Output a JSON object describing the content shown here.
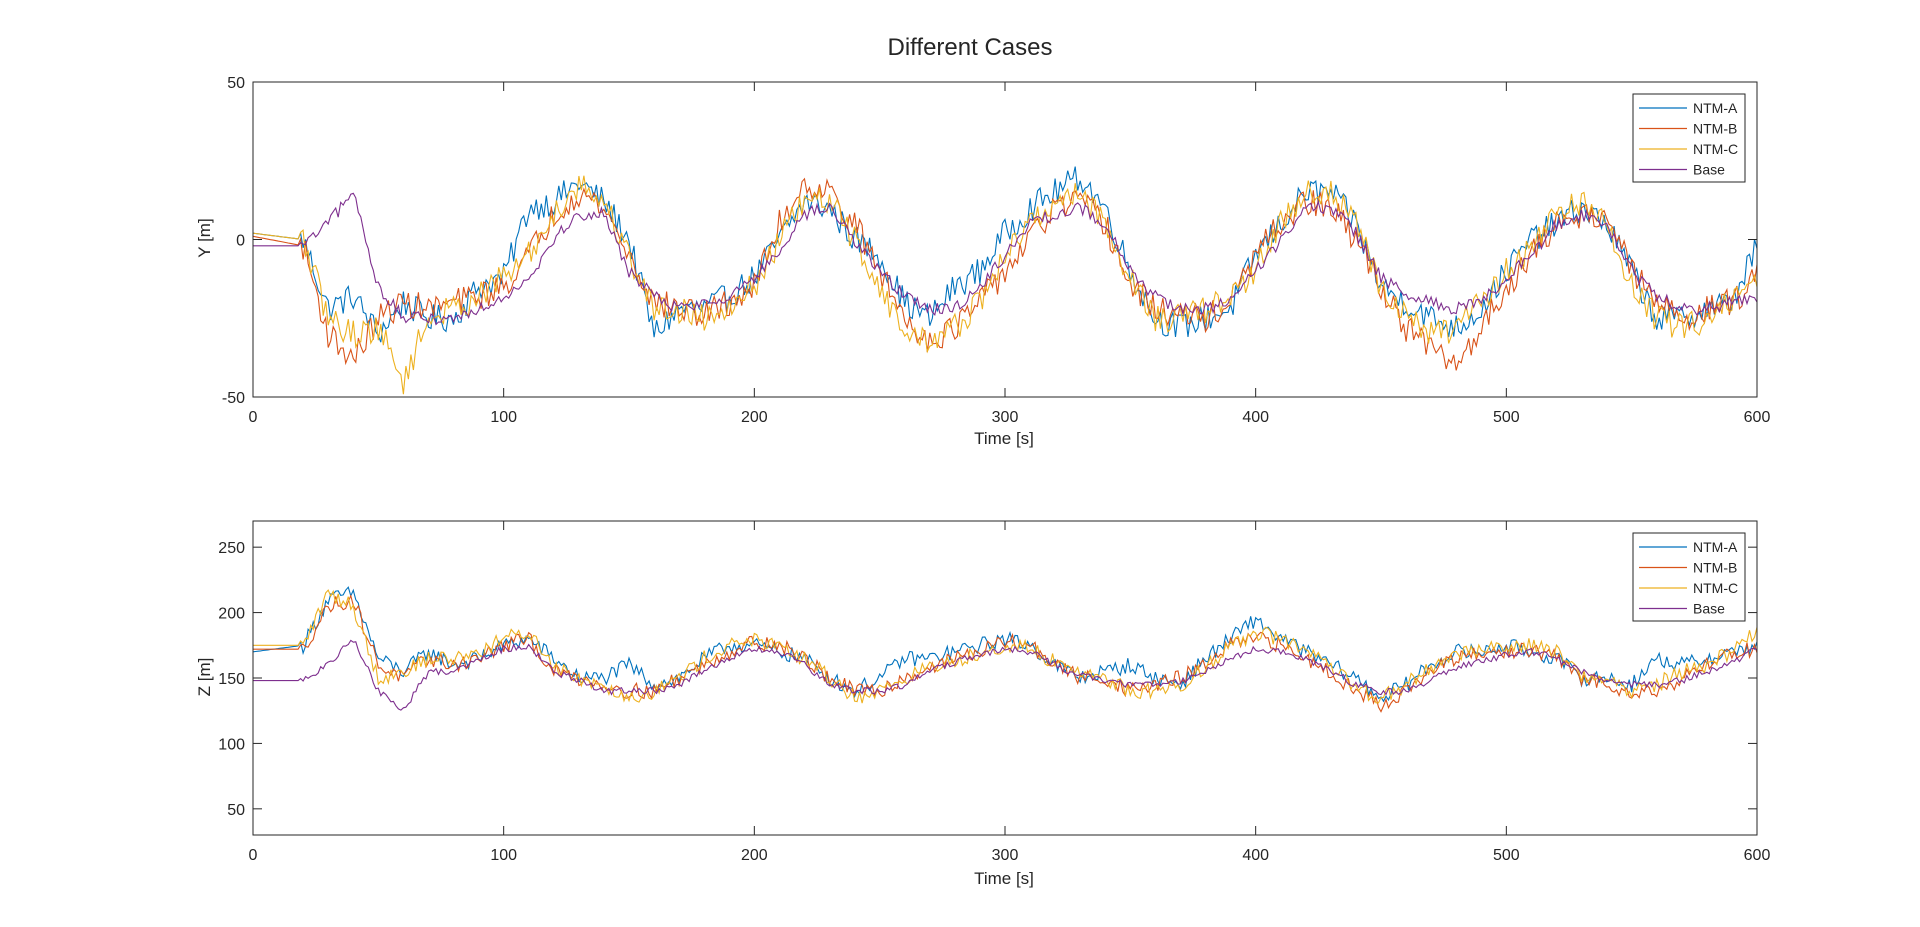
{
  "figure": {
    "title": "Different Cases"
  },
  "colors": {
    "NTM-A": "#0072BD",
    "NTM-B": "#D95319",
    "NTM-C": "#EDB120",
    "Base": "#7E2F8E",
    "axes": "#262626"
  },
  "chart_data": [
    {
      "type": "line",
      "ylabel": "Y [m]",
      "xlabel": "Time [s]",
      "xlim": [
        0,
        600
      ],
      "ylim": [
        -50,
        50
      ],
      "xticks": [
        0,
        100,
        200,
        300,
        400,
        500,
        600
      ],
      "yticks": [
        -50,
        0,
        50
      ],
      "legend": {
        "position": "top-right",
        "entries": [
          "NTM-A",
          "NTM-B",
          "NTM-C",
          "Base"
        ]
      },
      "grid": false,
      "x": [
        0,
        20,
        30,
        40,
        50,
        60,
        70,
        80,
        90,
        100,
        110,
        120,
        130,
        140,
        150,
        160,
        170,
        180,
        190,
        200,
        210,
        220,
        230,
        240,
        250,
        260,
        270,
        280,
        290,
        300,
        310,
        320,
        330,
        340,
        350,
        360,
        370,
        380,
        390,
        400,
        410,
        420,
        430,
        440,
        450,
        460,
        470,
        480,
        490,
        500,
        510,
        520,
        530,
        540,
        550,
        560,
        570,
        580,
        590,
        600
      ],
      "series": [
        {
          "name": "NTM-A",
          "values": [
            2,
            0,
            -22,
            -18,
            -30,
            -20,
            -25,
            -25,
            -15,
            -12,
            10,
            12,
            18,
            12,
            0,
            -30,
            -22,
            -22,
            -18,
            -12,
            0,
            12,
            10,
            0,
            -5,
            -20,
            -25,
            -15,
            -10,
            2,
            10,
            15,
            20,
            10,
            -10,
            -25,
            -28,
            -25,
            -22,
            -5,
            5,
            15,
            15,
            5,
            -15,
            -20,
            -25,
            -28,
            -22,
            -10,
            0,
            5,
            10,
            5,
            -10,
            -25,
            -25,
            -22,
            -20,
            -2
          ]
        },
        {
          "name": "NTM-B",
          "values": [
            1,
            -2,
            -30,
            -38,
            -25,
            -20,
            -22,
            -20,
            -18,
            -15,
            -5,
            8,
            15,
            10,
            -5,
            -20,
            -22,
            -24,
            -20,
            -15,
            5,
            18,
            15,
            5,
            -10,
            -25,
            -32,
            -28,
            -20,
            -10,
            0,
            10,
            12,
            5,
            -15,
            -22,
            -24,
            -25,
            -20,
            -5,
            5,
            12,
            10,
            0,
            -15,
            -28,
            -35,
            -40,
            -28,
            -15,
            -5,
            5,
            8,
            8,
            -10,
            -20,
            -25,
            -22,
            -20,
            -12
          ]
        },
        {
          "name": "NTM-C",
          "values": [
            2,
            0,
            -25,
            -30,
            -28,
            -45,
            -25,
            -22,
            -18,
            -12,
            -5,
            8,
            18,
            12,
            -5,
            -22,
            -22,
            -25,
            -20,
            -15,
            0,
            12,
            12,
            0,
            -15,
            -30,
            -32,
            -28,
            -20,
            -5,
            5,
            12,
            15,
            5,
            -12,
            -25,
            -25,
            -22,
            -18,
            -10,
            5,
            15,
            15,
            5,
            -15,
            -25,
            -30,
            -28,
            -20,
            -10,
            -2,
            8,
            12,
            5,
            -15,
            -25,
            -28,
            -25,
            -18,
            -15
          ]
        },
        {
          "name": "Base",
          "values": [
            -2,
            -2,
            5,
            15,
            -15,
            -25,
            -25,
            -25,
            -22,
            -18,
            -12,
            0,
            8,
            8,
            -10,
            -18,
            -22,
            -20,
            -18,
            -12,
            -5,
            8,
            10,
            0,
            -10,
            -18,
            -22,
            -22,
            -15,
            -5,
            5,
            8,
            10,
            5,
            -10,
            -18,
            -22,
            -22,
            -20,
            -10,
            0,
            10,
            10,
            2,
            -12,
            -18,
            -20,
            -22,
            -20,
            -12,
            -5,
            5,
            8,
            5,
            -10,
            -18,
            -22,
            -22,
            -20,
            -18
          ]
        }
      ]
    },
    {
      "type": "line",
      "ylabel": "Z [m]",
      "xlabel": "Time [s]",
      "xlim": [
        0,
        600
      ],
      "ylim": [
        30,
        270
      ],
      "xticks": [
        0,
        100,
        200,
        300,
        400,
        500,
        600
      ],
      "yticks": [
        50,
        100,
        150,
        200,
        250
      ],
      "legend": {
        "position": "top-right",
        "entries": [
          "NTM-A",
          "NTM-B",
          "NTM-C",
          "Base"
        ]
      },
      "grid": false,
      "x": [
        0,
        20,
        30,
        40,
        50,
        60,
        70,
        80,
        90,
        100,
        110,
        120,
        130,
        140,
        150,
        160,
        170,
        180,
        190,
        200,
        210,
        220,
        230,
        240,
        250,
        260,
        270,
        280,
        290,
        300,
        310,
        320,
        330,
        340,
        350,
        360,
        370,
        380,
        390,
        400,
        410,
        420,
        430,
        440,
        450,
        460,
        470,
        480,
        490,
        500,
        510,
        520,
        530,
        540,
        550,
        560,
        570,
        580,
        590,
        600
      ],
      "series": [
        {
          "name": "NTM-A",
          "values": [
            170,
            175,
            210,
            215,
            165,
            155,
            170,
            160,
            165,
            175,
            180,
            165,
            150,
            150,
            160,
            145,
            150,
            165,
            175,
            175,
            170,
            165,
            150,
            140,
            150,
            165,
            165,
            170,
            175,
            180,
            175,
            160,
            150,
            155,
            160,
            150,
            145,
            165,
            180,
            195,
            180,
            170,
            160,
            150,
            135,
            145,
            160,
            170,
            170,
            175,
            170,
            165,
            150,
            150,
            145,
            165,
            160,
            165,
            170,
            175
          ]
        },
        {
          "name": "NTM-B",
          "values": [
            172,
            172,
            205,
            210,
            160,
            150,
            165,
            160,
            165,
            175,
            180,
            155,
            150,
            145,
            140,
            140,
            150,
            160,
            170,
            178,
            175,
            165,
            150,
            140,
            140,
            150,
            158,
            165,
            170,
            178,
            175,
            160,
            150,
            150,
            140,
            145,
            150,
            160,
            175,
            180,
            175,
            165,
            155,
            140,
            130,
            140,
            155,
            165,
            168,
            170,
            172,
            165,
            150,
            145,
            140,
            140,
            150,
            160,
            170,
            172
          ]
        },
        {
          "name": "NTM-C",
          "values": [
            175,
            175,
            215,
            205,
            150,
            155,
            165,
            165,
            170,
            180,
            185,
            160,
            150,
            145,
            135,
            140,
            150,
            165,
            175,
            180,
            172,
            165,
            150,
            135,
            140,
            150,
            158,
            162,
            170,
            175,
            172,
            162,
            155,
            150,
            140,
            140,
            145,
            158,
            175,
            185,
            180,
            170,
            158,
            142,
            135,
            145,
            158,
            168,
            172,
            175,
            175,
            170,
            152,
            150,
            140,
            145,
            155,
            160,
            170,
            185
          ]
        },
        {
          "name": "Base",
          "values": [
            148,
            148,
            160,
            180,
            140,
            125,
            155,
            155,
            165,
            172,
            175,
            155,
            148,
            140,
            140,
            140,
            145,
            155,
            165,
            172,
            170,
            160,
            145,
            140,
            140,
            145,
            155,
            162,
            168,
            172,
            170,
            160,
            152,
            148,
            145,
            145,
            148,
            155,
            165,
            172,
            170,
            165,
            155,
            145,
            140,
            140,
            148,
            158,
            162,
            168,
            170,
            165,
            155,
            148,
            145,
            145,
            148,
            155,
            162,
            172
          ]
        }
      ]
    }
  ]
}
